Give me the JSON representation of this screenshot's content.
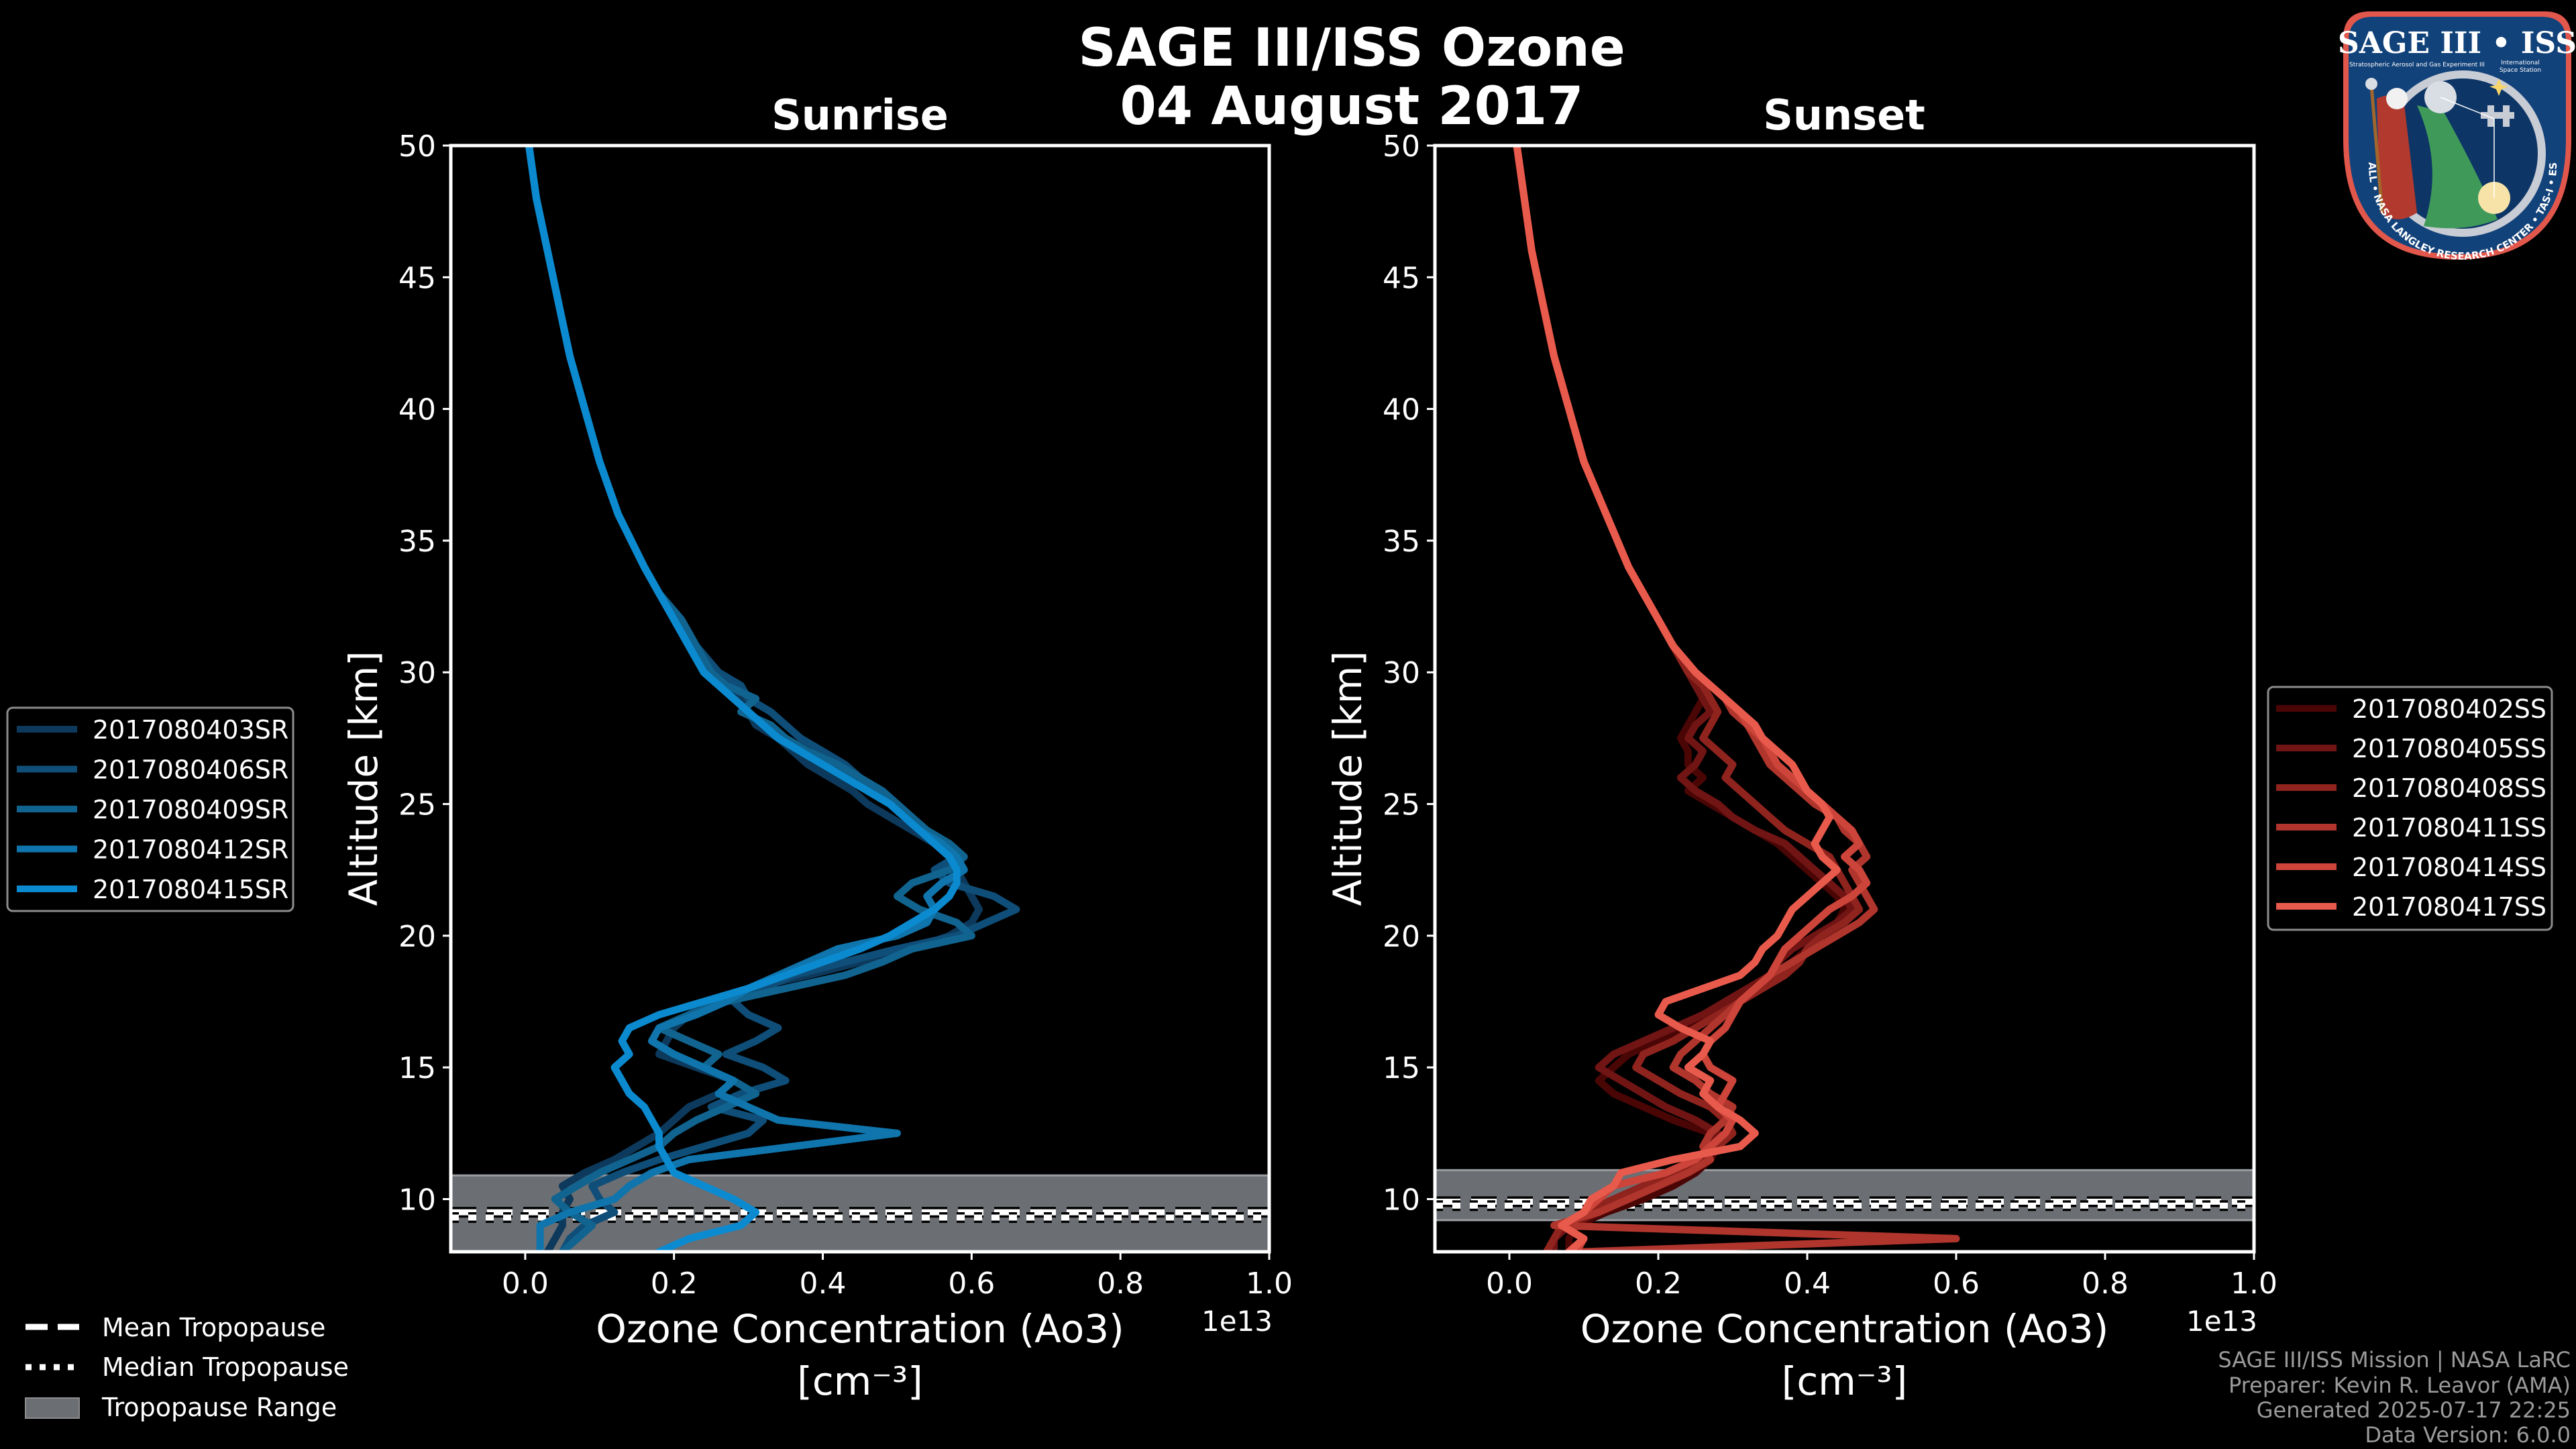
{
  "title": {
    "line1": "SAGE III/ISS Ozone",
    "line2": "04 August 2017"
  },
  "logo": {
    "name": "SAGE III • ISS",
    "subtitle_left": "Stratospheric Aerosol and Gas Experiment III",
    "subtitle_right_1": "International",
    "subtitle_right_2": "Space Station",
    "ring_text": "BALL • NASA LANGLEY RESEARCH CENTER • TAS-I • ESA"
  },
  "tropopause_legend": {
    "mean": "Mean Tropopause",
    "median": "Median Tropopause",
    "range": "Tropopause Range"
  },
  "footer": {
    "line1": "SAGE III/ISS Mission | NASA LaRC",
    "line2": "Preparer: Kevin R. Leavor (AMA)",
    "line3": "Generated 2025-07-17 22:25",
    "line4": "Data Version: 6.0.0"
  },
  "colors": {
    "background": "#000000",
    "tropopause_fill": "#6b6e73",
    "sunrise": [
      "#0d3a5c",
      "#0f4e78",
      "#10648f",
      "#0f75ac",
      "#0b8ad0"
    ],
    "sunset": [
      "#4a0505",
      "#701414",
      "#8f231e",
      "#b0352c",
      "#cc443a",
      "#e85a4c"
    ]
  },
  "chart_data": [
    {
      "type": "line",
      "title": "Sunrise",
      "xlabel": "Ozone Concentration (Ao3)",
      "xlabel_units": "[cm⁻³]",
      "x_offset_label": "1e13",
      "ylabel": "Altitude [km]",
      "xlim": [
        -0.1,
        1.0
      ],
      "ylim": [
        8,
        50
      ],
      "xticks": [
        "0.0",
        "0.2",
        "0.4",
        "0.6",
        "0.8",
        "1.0"
      ],
      "xtick_values": [
        0.0,
        0.2,
        0.4,
        0.6,
        0.8,
        1.0
      ],
      "yticks": [
        "10",
        "15",
        "20",
        "25",
        "30",
        "35",
        "40",
        "45",
        "50"
      ],
      "ytick_values": [
        10,
        15,
        20,
        25,
        30,
        35,
        40,
        45,
        50
      ],
      "legend_position": "left",
      "tropopause": {
        "mean": 9.5,
        "median": 9.3,
        "range": [
          8.0,
          10.9
        ]
      },
      "altitudes": [
        50,
        48,
        46,
        44,
        42,
        40,
        38,
        36,
        34,
        33,
        32,
        31,
        30,
        29.5,
        29,
        28.5,
        28,
        27.5,
        27,
        26.5,
        26,
        25.5,
        25,
        24.5,
        24,
        23.5,
        23,
        22.5,
        22,
        21.5,
        21,
        20.5,
        20,
        19.5,
        19,
        18.5,
        18,
        17.5,
        17,
        16.5,
        16,
        15.5,
        15,
        14.5,
        14,
        13.5,
        13,
        12.5,
        12,
        11.5,
        11,
        10.5,
        10,
        9.5,
        9,
        8.5,
        8
      ],
      "series": [
        {
          "name": "2017080403SR",
          "values": [
            0.005,
            0.015,
            0.03,
            0.045,
            0.06,
            0.08,
            0.1,
            0.125,
            0.16,
            0.18,
            0.2,
            0.22,
            0.25,
            0.27,
            0.29,
            0.3,
            0.31,
            0.34,
            0.36,
            0.38,
            0.41,
            0.44,
            0.46,
            0.49,
            0.52,
            0.55,
            0.57,
            0.58,
            0.59,
            0.6,
            0.61,
            0.6,
            0.57,
            0.52,
            0.45,
            0.38,
            0.3,
            0.25,
            0.22,
            0.2,
            0.19,
            0.18,
            0.23,
            0.28,
            0.26,
            0.22,
            0.2,
            0.18,
            0.15,
            0.12,
            0.08,
            0.05,
            0.06,
            0.05,
            0.05,
            0.04,
            0.03
          ]
        },
        {
          "name": "2017080406SR",
          "values": [
            0.005,
            0.015,
            0.03,
            0.045,
            0.06,
            0.08,
            0.1,
            0.125,
            0.16,
            0.18,
            0.21,
            0.23,
            0.26,
            0.29,
            0.3,
            0.33,
            0.35,
            0.37,
            0.4,
            0.43,
            0.45,
            0.47,
            0.49,
            0.51,
            0.53,
            0.56,
            0.58,
            0.55,
            0.57,
            0.63,
            0.66,
            0.62,
            0.58,
            0.5,
            0.43,
            0.36,
            0.32,
            0.28,
            0.3,
            0.34,
            0.31,
            0.27,
            0.32,
            0.35,
            0.29,
            0.25,
            0.32,
            0.3,
            0.24,
            0.18,
            0.13,
            0.09,
            0.1,
            0.12,
            0.08,
            0.06,
            0.05
          ]
        },
        {
          "name": "2017080409SR",
          "values": [
            0.005,
            0.015,
            0.03,
            0.045,
            0.06,
            0.08,
            0.1,
            0.125,
            0.16,
            0.18,
            0.21,
            0.23,
            0.25,
            0.27,
            0.31,
            0.29,
            0.33,
            0.35,
            0.38,
            0.42,
            0.45,
            0.48,
            0.5,
            0.52,
            0.54,
            0.57,
            0.59,
            0.57,
            0.52,
            0.5,
            0.53,
            0.58,
            0.6,
            0.52,
            0.48,
            0.43,
            0.35,
            0.27,
            0.22,
            0.18,
            0.22,
            0.26,
            0.24,
            0.28,
            0.31,
            0.27,
            0.23,
            0.2,
            0.18,
            0.14,
            0.1,
            0.07,
            0.04,
            0.06,
            0.09,
            0.07,
            0.05
          ]
        },
        {
          "name": "2017080412SR",
          "values": [
            0.005,
            0.015,
            0.03,
            0.045,
            0.06,
            0.08,
            0.1,
            0.125,
            0.16,
            0.18,
            0.2,
            0.22,
            0.24,
            0.26,
            0.28,
            0.3,
            0.32,
            0.34,
            0.37,
            0.4,
            0.43,
            0.46,
            0.49,
            0.51,
            0.53,
            0.56,
            0.58,
            0.59,
            0.56,
            0.54,
            0.55,
            0.54,
            0.5,
            0.42,
            0.38,
            0.34,
            0.3,
            0.27,
            0.23,
            0.18,
            0.17,
            0.2,
            0.24,
            0.28,
            0.26,
            0.3,
            0.34,
            0.5,
            0.36,
            0.22,
            0.17,
            0.14,
            0.12,
            0.06,
            0.02,
            0.02,
            0.02
          ]
        },
        {
          "name": "2017080415SR",
          "values": [
            0.005,
            0.015,
            0.03,
            0.045,
            0.06,
            0.08,
            0.1,
            0.125,
            0.16,
            0.18,
            0.2,
            0.22,
            0.24,
            0.26,
            0.28,
            0.3,
            0.32,
            0.34,
            0.37,
            0.4,
            0.43,
            0.46,
            0.49,
            0.51,
            0.53,
            0.55,
            0.57,
            0.58,
            0.58,
            0.57,
            0.55,
            0.52,
            0.49,
            0.45,
            0.4,
            0.35,
            0.3,
            0.24,
            0.18,
            0.14,
            0.13,
            0.14,
            0.12,
            0.13,
            0.14,
            0.16,
            0.17,
            0.18,
            0.18,
            0.19,
            0.2,
            0.24,
            0.28,
            0.31,
            0.29,
            0.22,
            0.18
          ]
        }
      ]
    },
    {
      "type": "line",
      "title": "Sunset",
      "xlabel": "Ozone Concentration (Ao3)",
      "xlabel_units": "[cm⁻³]",
      "x_offset_label": "1e13",
      "ylabel": "Altitude [km]",
      "xlim": [
        -0.1,
        1.0
      ],
      "ylim": [
        8,
        50
      ],
      "xticks": [
        "0.0",
        "0.2",
        "0.4",
        "0.6",
        "0.8",
        "1.0"
      ],
      "xtick_values": [
        0.0,
        0.2,
        0.4,
        0.6,
        0.8,
        1.0
      ],
      "yticks": [
        "10",
        "15",
        "20",
        "25",
        "30",
        "35",
        "40",
        "45",
        "50"
      ],
      "ytick_values": [
        10,
        15,
        20,
        25,
        30,
        35,
        40,
        45,
        50
      ],
      "legend_position": "right",
      "tropopause": {
        "mean": 9.9,
        "median": 9.75,
        "range": [
          9.2,
          11.1
        ]
      },
      "altitudes": [
        50,
        48,
        46,
        44,
        42,
        40,
        38,
        36,
        34,
        33,
        32,
        31,
        30,
        29.5,
        29,
        28.5,
        28,
        27.5,
        27,
        26.5,
        26,
        25.5,
        25,
        24.5,
        24,
        23.5,
        23,
        22.5,
        22,
        21.5,
        21,
        20.5,
        20,
        19.5,
        19,
        18.5,
        18,
        17.5,
        17,
        16.5,
        16,
        15.5,
        15,
        14.5,
        14,
        13.5,
        13,
        12.5,
        12,
        11.5,
        11,
        10.5,
        10,
        9.5,
        9,
        8.5,
        8
      ],
      "series": [
        {
          "name": "2017080402SS",
          "values": [
            0.01,
            0.02,
            0.03,
            0.045,
            0.06,
            0.08,
            0.1,
            0.13,
            0.16,
            0.18,
            0.2,
            0.22,
            0.24,
            0.25,
            0.26,
            0.25,
            0.24,
            0.23,
            0.24,
            0.24,
            0.26,
            0.24,
            0.27,
            0.3,
            0.33,
            0.36,
            0.38,
            0.4,
            0.42,
            0.44,
            0.45,
            0.44,
            0.42,
            0.4,
            0.38,
            0.36,
            0.34,
            0.3,
            0.27,
            0.24,
            0.2,
            0.16,
            0.14,
            0.12,
            0.14,
            0.18,
            0.22,
            0.27,
            0.28,
            0.27,
            0.25,
            0.22,
            0.18,
            0.13,
            0.09,
            0.08,
            0.08
          ]
        },
        {
          "name": "2017080405SS",
          "values": [
            0.01,
            0.02,
            0.03,
            0.045,
            0.06,
            0.08,
            0.1,
            0.13,
            0.16,
            0.18,
            0.2,
            0.22,
            0.24,
            0.25,
            0.26,
            0.27,
            0.25,
            0.24,
            0.26,
            0.25,
            0.23,
            0.25,
            0.28,
            0.3,
            0.33,
            0.37,
            0.39,
            0.41,
            0.43,
            0.45,
            0.46,
            0.44,
            0.41,
            0.38,
            0.36,
            0.35,
            0.32,
            0.29,
            0.26,
            0.22,
            0.18,
            0.14,
            0.12,
            0.15,
            0.18,
            0.21,
            0.25,
            0.28,
            0.27,
            0.25,
            0.22,
            0.2,
            0.16,
            0.12,
            0.08,
            0.06,
            0.06
          ]
        },
        {
          "name": "2017080408SS",
          "values": [
            0.01,
            0.02,
            0.03,
            0.045,
            0.06,
            0.08,
            0.1,
            0.13,
            0.16,
            0.18,
            0.2,
            0.22,
            0.24,
            0.26,
            0.27,
            0.28,
            0.27,
            0.26,
            0.28,
            0.3,
            0.29,
            0.31,
            0.33,
            0.35,
            0.37,
            0.4,
            0.43,
            0.44,
            0.45,
            0.46,
            0.47,
            0.45,
            0.42,
            0.4,
            0.39,
            0.37,
            0.34,
            0.31,
            0.28,
            0.25,
            0.22,
            0.18,
            0.17,
            0.2,
            0.23,
            0.27,
            0.29,
            0.3,
            0.28,
            0.26,
            0.23,
            0.18,
            0.14,
            0.1,
            0.07,
            0.06,
            0.05
          ]
        },
        {
          "name": "2017080411SS",
          "values": [
            0.01,
            0.02,
            0.03,
            0.045,
            0.06,
            0.08,
            0.1,
            0.13,
            0.16,
            0.18,
            0.2,
            0.22,
            0.25,
            0.27,
            0.29,
            0.3,
            0.32,
            0.33,
            0.34,
            0.35,
            0.37,
            0.39,
            0.41,
            0.44,
            0.45,
            0.47,
            0.48,
            0.46,
            0.47,
            0.48,
            0.49,
            0.47,
            0.44,
            0.41,
            0.38,
            0.35,
            0.33,
            0.31,
            0.29,
            0.27,
            0.25,
            0.23,
            0.22,
            0.25,
            0.27,
            0.3,
            0.29,
            0.27,
            0.26,
            0.27,
            0.24,
            0.2,
            0.16,
            0.12,
            0.06,
            0.6,
            0.1
          ]
        },
        {
          "name": "2017080414SS",
          "values": [
            0.01,
            0.02,
            0.03,
            0.045,
            0.06,
            0.08,
            0.1,
            0.13,
            0.16,
            0.18,
            0.2,
            0.22,
            0.25,
            0.27,
            0.29,
            0.31,
            0.32,
            0.34,
            0.35,
            0.36,
            0.38,
            0.4,
            0.42,
            0.44,
            0.46,
            0.47,
            0.45,
            0.47,
            0.48,
            0.46,
            0.43,
            0.41,
            0.39,
            0.37,
            0.36,
            0.35,
            0.33,
            0.31,
            0.3,
            0.29,
            0.27,
            0.26,
            0.27,
            0.3,
            0.29,
            0.28,
            0.3,
            0.29,
            0.27,
            0.25,
            0.21,
            0.14,
            0.12,
            0.1,
            0.07,
            0.1,
            0.09
          ]
        },
        {
          "name": "2017080417SS",
          "values": [
            0.01,
            0.02,
            0.03,
            0.045,
            0.06,
            0.08,
            0.1,
            0.13,
            0.16,
            0.18,
            0.2,
            0.22,
            0.25,
            0.27,
            0.29,
            0.31,
            0.33,
            0.34,
            0.36,
            0.38,
            0.39,
            0.4,
            0.42,
            0.43,
            0.42,
            0.41,
            0.42,
            0.44,
            0.42,
            0.4,
            0.38,
            0.37,
            0.36,
            0.34,
            0.33,
            0.31,
            0.26,
            0.21,
            0.2,
            0.23,
            0.27,
            0.26,
            0.24,
            0.27,
            0.26,
            0.28,
            0.31,
            0.33,
            0.31,
            0.22,
            0.15,
            0.14,
            0.11,
            0.1,
            0.07,
            0.1,
            0.08
          ]
        }
      ]
    }
  ]
}
